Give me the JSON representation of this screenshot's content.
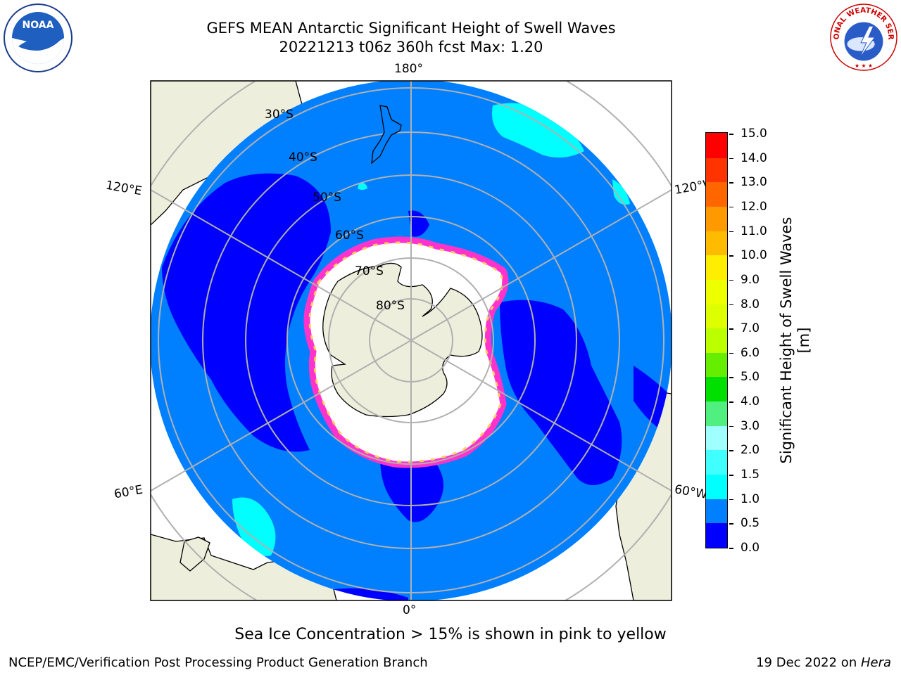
{
  "title_line1": "GEFS MEAN Antarctic Significant Height of Swell Waves",
  "title_line2": "20221213 t06z 360h fcst   Max: 1.20",
  "logos": {
    "noaa_text": "NOAA",
    "nws_text": "NATIONAL WEATHER SERVICE"
  },
  "map": {
    "projection": "south-polar-stereographic",
    "lon_labels": [
      "180°",
      "120°E",
      "120°W",
      "60°E",
      "60°W",
      "0°"
    ],
    "lat_labels": [
      "30°S",
      "40°S",
      "50°S",
      "60°S",
      "70°S",
      "80°S"
    ],
    "colors": {
      "ocean_swell_0_0.5": "#0000ff",
      "ocean_swell_0.5_1.0": "#0080ff",
      "ocean_swell_1.0_1.5": "#00ffff",
      "sea_ice": "#ffffff",
      "sea_ice_edge": "#ff33cc",
      "land": "#eeeedc"
    }
  },
  "colorbar": {
    "title": "Significant Height of Swell Waves [m]",
    "tick_labels": [
      "15.0",
      "14.0",
      "13.0",
      "12.0",
      "11.0",
      "10.0",
      "9.0",
      "8.0",
      "7.0",
      "6.0",
      "5.0",
      "4.0",
      "3.0",
      "2.0",
      "1.5",
      "1.0",
      "0.5",
      "0.0"
    ],
    "bins": [
      {
        "from": 0.0,
        "to": 0.5,
        "color": "#0000ff"
      },
      {
        "from": 0.5,
        "to": 1.0,
        "color": "#0080ff"
      },
      {
        "from": 1.0,
        "to": 1.5,
        "color": "#00ffff"
      },
      {
        "from": 1.5,
        "to": 2.0,
        "color": "#40ffff"
      },
      {
        "from": 2.0,
        "to": 3.0,
        "color": "#a0ffff"
      },
      {
        "from": 3.0,
        "to": 4.0,
        "color": "#50f080"
      },
      {
        "from": 4.0,
        "to": 5.0,
        "color": "#00e000"
      },
      {
        "from": 5.0,
        "to": 6.0,
        "color": "#66ee00"
      },
      {
        "from": 6.0,
        "to": 7.0,
        "color": "#bbff00"
      },
      {
        "from": 7.0,
        "to": 8.0,
        "color": "#ddff00"
      },
      {
        "from": 8.0,
        "to": 9.0,
        "color": "#eeff00"
      },
      {
        "from": 9.0,
        "to": 10.0,
        "color": "#ffee00"
      },
      {
        "from": 10.0,
        "to": 11.0,
        "color": "#ffbb00"
      },
      {
        "from": 11.0,
        "to": 12.0,
        "color": "#ff9900"
      },
      {
        "from": 12.0,
        "to": 13.0,
        "color": "#ff6600"
      },
      {
        "from": 13.0,
        "to": 14.0,
        "color": "#ff3300"
      },
      {
        "from": 14.0,
        "to": 15.0,
        "color": "#ff0000"
      }
    ]
  },
  "note": "Sea Ice Concentration > 15% is shown in pink to yellow",
  "footer": {
    "left": "NCEP/EMC/Verification Post Processing Product Generation Branch",
    "right_prefix": "19 Dec 2022 on ",
    "right_host": "Hera"
  }
}
